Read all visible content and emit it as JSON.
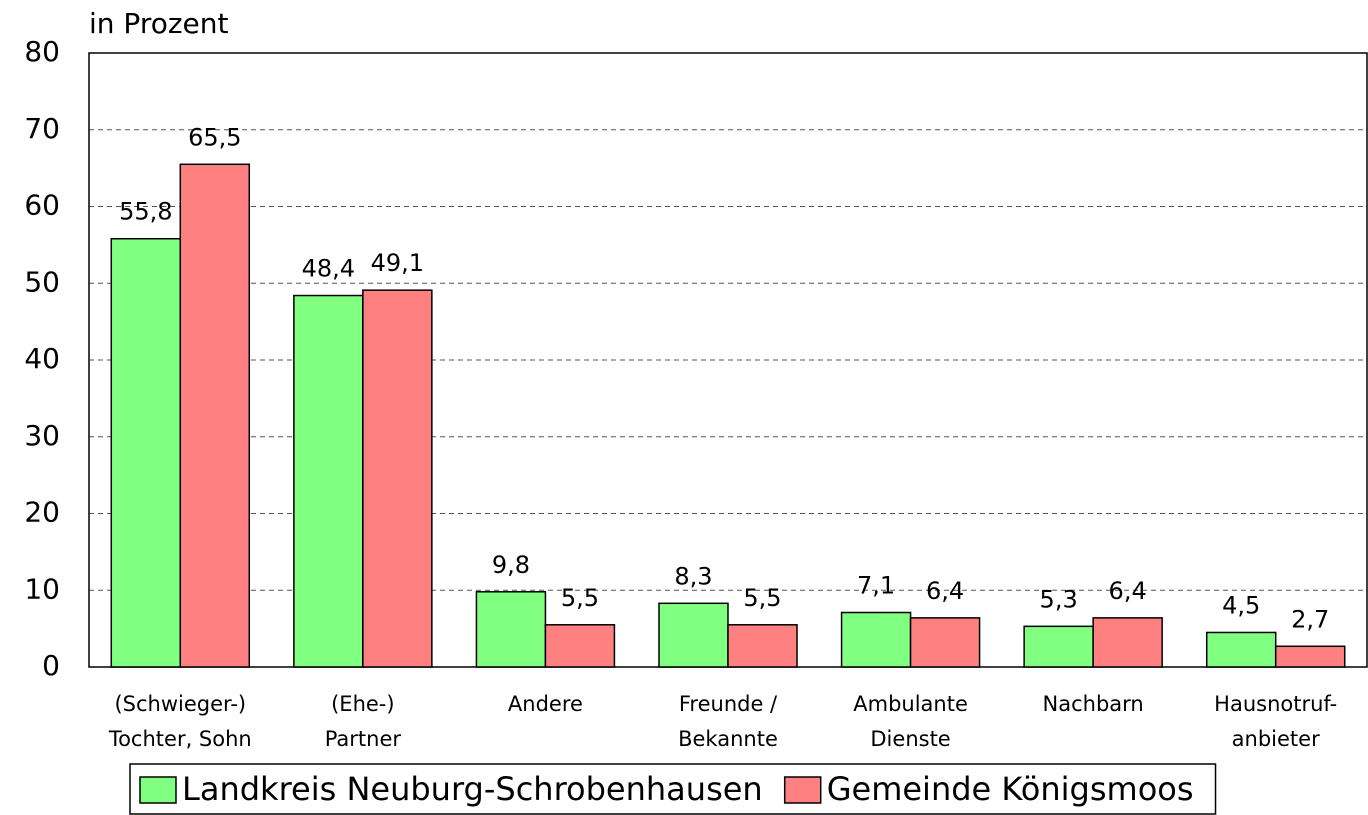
{
  "chart_data": {
    "type": "bar",
    "ylabel": "in Prozent",
    "categories": [
      [
        "(Schwieger-)",
        "Tochter, Sohn"
      ],
      [
        "(Ehe-)",
        "Partner"
      ],
      [
        "Andere"
      ],
      [
        "Freunde /",
        "Bekannte"
      ],
      [
        "Ambulante",
        "Dienste"
      ],
      [
        "Nachbarn"
      ],
      [
        "Hausnotruf-",
        "anbieter"
      ]
    ],
    "series": [
      {
        "name": "Landkreis Neuburg-Schrobenhausen",
        "color": "#80ff80",
        "values": [
          55.8,
          48.4,
          9.8,
          8.3,
          7.1,
          5.3,
          4.5
        ],
        "value_labels": [
          "55,8",
          "48,4",
          "9,8",
          "8,3",
          "7,1",
          "5,3",
          "4,5"
        ]
      },
      {
        "name": "Gemeinde Königsmoos",
        "color": "#ff8080",
        "values": [
          65.5,
          49.1,
          5.5,
          5.5,
          6.4,
          6.4,
          2.7
        ],
        "value_labels": [
          "65,5",
          "49,1",
          "5,5",
          "5,5",
          "6,4",
          "6,4",
          "2,7"
        ]
      }
    ],
    "ylim": [
      0,
      80
    ],
    "yticks": [
      0,
      10,
      20,
      30,
      40,
      50,
      60,
      70,
      80
    ],
    "grid": true,
    "legend": "bottom"
  }
}
